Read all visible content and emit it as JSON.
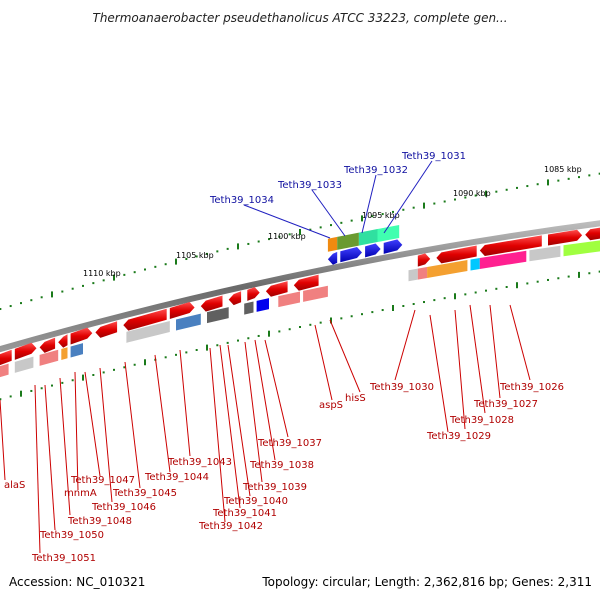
{
  "header": {
    "title": "Thermoanaerobacter pseudethanolicus ATCC 33223, complete gen..."
  },
  "footer": {
    "accession": "Accession: NC_010321",
    "summary": "Topology: circular; Length: 2,362,816 bp; Genes: 2,311"
  },
  "scale": {
    "tick_labels": [
      "1085 kbp",
      "1090 kbp",
      "1095 kbp",
      "1100 kbp",
      "1105 kbp",
      "1110 kbp"
    ]
  },
  "genes_top": [
    "Teth39_1031",
    "Teth39_1032",
    "Teth39_1033",
    "Teth39_1034"
  ],
  "genes_bottom": [
    "Teth39_1026",
    "Teth39_1027",
    "Teth39_1028",
    "Teth39_1029",
    "Teth39_1030",
    "hisS",
    "aspS",
    "Teth39_1037",
    "Teth39_1038",
    "Teth39_1039",
    "Teth39_1040",
    "Teth39_1041",
    "Teth39_1042",
    "Teth39_1043",
    "Teth39_1044",
    "Teth39_1045",
    "Teth39_1046",
    "Teth39_1047",
    "mnmA",
    "Teth39_1048",
    "Teth39_1050",
    "Teth39_1051",
    "alaS"
  ],
  "colors": {
    "backbone": "#808080",
    "forward_gene": "#ee0000",
    "reverse_gene": "#ee0000",
    "label_red": "#b00000",
    "label_blue": "#1010a0",
    "tick_green": "#1a7a1a"
  }
}
